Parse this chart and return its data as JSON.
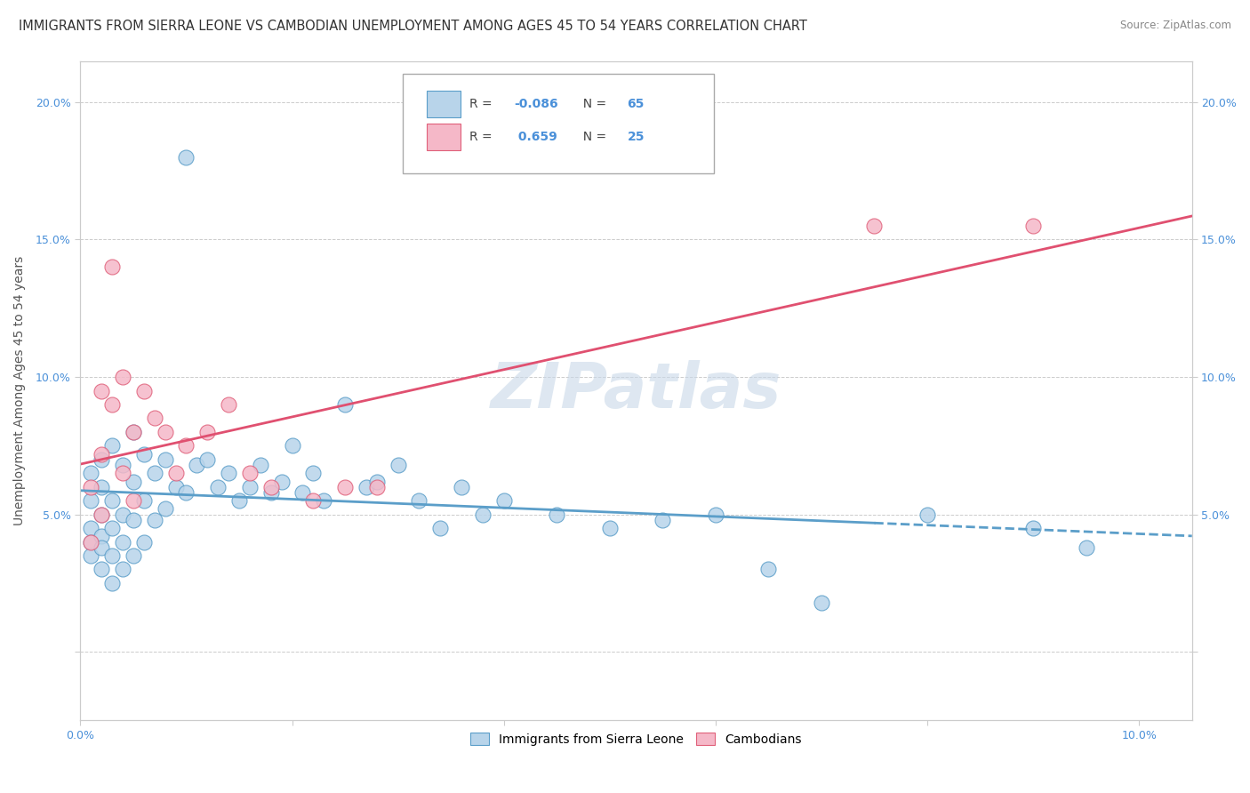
{
  "title": "IMMIGRANTS FROM SIERRA LEONE VS CAMBODIAN UNEMPLOYMENT AMONG AGES 45 TO 54 YEARS CORRELATION CHART",
  "source": "Source: ZipAtlas.com",
  "ylabel": "Unemployment Among Ages 45 to 54 years",
  "xlim": [
    0.0,
    0.105
  ],
  "ylim": [
    -0.025,
    0.215
  ],
  "xtick_vals": [
    0.0,
    0.02,
    0.04,
    0.06,
    0.08,
    0.1
  ],
  "xtick_labels": [
    "0.0%",
    "",
    "",
    "",
    "",
    "10.0%"
  ],
  "ytick_vals": [
    0.0,
    0.05,
    0.1,
    0.15,
    0.2
  ],
  "ytick_labels_left": [
    "",
    "5.0%",
    "10.0%",
    "15.0%",
    "20.0%"
  ],
  "ytick_labels_right": [
    "",
    "5.0%",
    "10.0%",
    "15.0%",
    "20.0%"
  ],
  "color_blue_fill": "#b8d4ea",
  "color_blue_edge": "#5b9ec9",
  "color_pink_fill": "#f5b8c8",
  "color_pink_edge": "#e0607a",
  "color_blue_line": "#5b9ec9",
  "color_pink_line": "#e05070",
  "watermark": "ZIPatlas",
  "sierra_leone_x": [
    0.001,
    0.001,
    0.001,
    0.001,
    0.001,
    0.002,
    0.002,
    0.002,
    0.002,
    0.002,
    0.002,
    0.003,
    0.003,
    0.003,
    0.003,
    0.003,
    0.004,
    0.004,
    0.004,
    0.004,
    0.005,
    0.005,
    0.005,
    0.005,
    0.006,
    0.006,
    0.006,
    0.007,
    0.007,
    0.008,
    0.008,
    0.009,
    0.01,
    0.01,
    0.011,
    0.012,
    0.013,
    0.014,
    0.015,
    0.016,
    0.017,
    0.018,
    0.019,
    0.02,
    0.021,
    0.022,
    0.023,
    0.025,
    0.027,
    0.028,
    0.03,
    0.032,
    0.034,
    0.036,
    0.038,
    0.04,
    0.045,
    0.05,
    0.055,
    0.06,
    0.065,
    0.07,
    0.08,
    0.09,
    0.095
  ],
  "sierra_leone_y": [
    0.055,
    0.045,
    0.065,
    0.04,
    0.035,
    0.06,
    0.05,
    0.042,
    0.038,
    0.07,
    0.03,
    0.075,
    0.055,
    0.045,
    0.035,
    0.025,
    0.068,
    0.05,
    0.04,
    0.03,
    0.08,
    0.062,
    0.048,
    0.035,
    0.072,
    0.055,
    0.04,
    0.065,
    0.048,
    0.07,
    0.052,
    0.06,
    0.18,
    0.058,
    0.068,
    0.07,
    0.06,
    0.065,
    0.055,
    0.06,
    0.068,
    0.058,
    0.062,
    0.075,
    0.058,
    0.065,
    0.055,
    0.09,
    0.06,
    0.062,
    0.068,
    0.055,
    0.045,
    0.06,
    0.05,
    0.055,
    0.05,
    0.045,
    0.048,
    0.05,
    0.03,
    0.018,
    0.05,
    0.045,
    0.038
  ],
  "cambodian_x": [
    0.001,
    0.001,
    0.002,
    0.002,
    0.002,
    0.003,
    0.003,
    0.004,
    0.004,
    0.005,
    0.005,
    0.006,
    0.007,
    0.008,
    0.009,
    0.01,
    0.012,
    0.014,
    0.016,
    0.018,
    0.022,
    0.025,
    0.028,
    0.075,
    0.09
  ],
  "cambodian_y": [
    0.06,
    0.04,
    0.095,
    0.072,
    0.05,
    0.14,
    0.09,
    0.1,
    0.065,
    0.08,
    0.055,
    0.095,
    0.085,
    0.08,
    0.065,
    0.075,
    0.08,
    0.09,
    0.065,
    0.06,
    0.055,
    0.06,
    0.06,
    0.155,
    0.155
  ],
  "title_fontsize": 10.5,
  "axis_fontsize": 10,
  "tick_fontsize": 9,
  "legend_fontsize": 10
}
